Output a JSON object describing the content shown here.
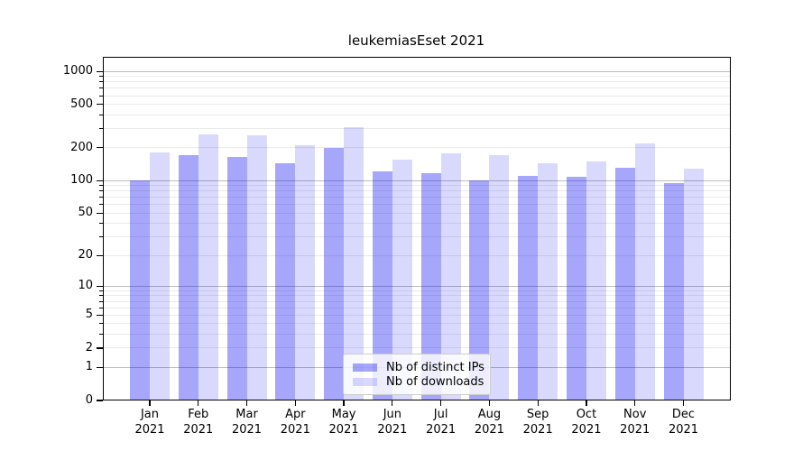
{
  "title": "leukemiasEset 2021",
  "chart_data": {
    "type": "bar",
    "title": "leukemiasEset 2021",
    "categories": [
      "Jan",
      "Feb",
      "Mar",
      "Apr",
      "May",
      "Jun",
      "Jul",
      "Aug",
      "Sep",
      "Oct",
      "Nov",
      "Dec"
    ],
    "year": "2021",
    "series": [
      {
        "name": "Nb of distinct IPs",
        "rgb": "0,0,240",
        "alpha": 0.35,
        "hex_on_white": "#a6a6fa",
        "values": [
          100,
          170,
          164,
          145,
          201,
          121,
          117,
          100,
          111,
          108,
          132,
          95
        ]
      },
      {
        "name": "Nb of downloads",
        "rgb": "0,0,240",
        "alpha": 0.15,
        "hex_on_white": "#d9d9fc",
        "values": [
          180,
          265,
          260,
          210,
          310,
          156,
          178,
          170,
          145,
          149,
          221,
          129
        ]
      }
    ],
    "xlabel": "",
    "ylabel": "",
    "yscale": "log(value+1)",
    "ylim": [
      0,
      1370
    ],
    "yticks": [
      0,
      1,
      2,
      5,
      10,
      20,
      50,
      100,
      200,
      500,
      1000
    ],
    "minor_gridlines": [
      3,
      4,
      6,
      7,
      8,
      9,
      30,
      40,
      60,
      70,
      80,
      90,
      300,
      400,
      600,
      700,
      800,
      900
    ],
    "strong_gridlines": [
      1,
      10,
      100,
      1000
    ],
    "grid": true,
    "legend_position": "lower center inside plot",
    "colors": {
      "major_gridline": "#bdbdbd",
      "minor_gridline": "#eaeaea",
      "spine": "#000000",
      "legend_border": "#cccccc"
    }
  },
  "legend": {
    "items": [
      {
        "label": "Nb of distinct IPs"
      },
      {
        "label": "Nb of downloads"
      }
    ]
  }
}
